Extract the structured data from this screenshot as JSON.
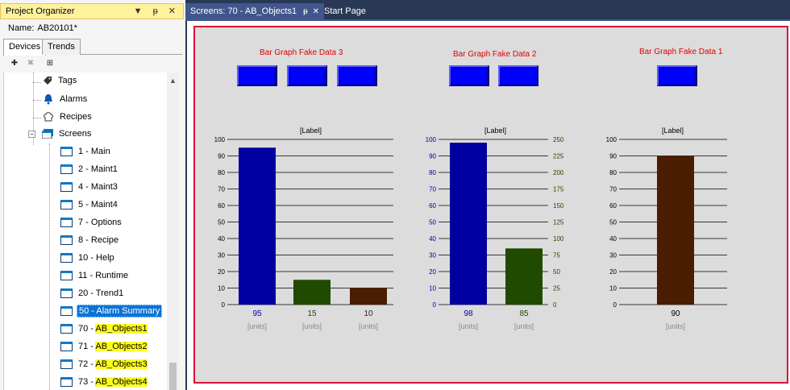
{
  "organizer": {
    "title": "Project Organizer",
    "title_buttons": "▼ ᵽ ✕",
    "name_label": "Name:",
    "name_value": "AB20101*",
    "tabs": [
      "Devices",
      "Trends"
    ],
    "tree": {
      "tags": "Tags",
      "alarms": "Alarms",
      "recipes": "Recipes",
      "screens": "Screens",
      "screen_items": [
        {
          "label": "1 - Main"
        },
        {
          "label": "2 - Maint1"
        },
        {
          "label": "4 - Maint3"
        },
        {
          "label": "5 - Maint4"
        },
        {
          "label": "7 - Options"
        },
        {
          "label": "8 - Recipe"
        },
        {
          "label": "10 - Help"
        },
        {
          "label": "11 - Runtime"
        },
        {
          "label": "20 - Trend1"
        },
        {
          "label": "50 - Alarm Summary"
        }
      ],
      "highlighted_items": [
        {
          "num": "70 - ",
          "name": "AB_Objects1"
        },
        {
          "num": "71 - ",
          "name": "AB_Objects2"
        },
        {
          "num": "72 - ",
          "name": "AB_Objects3"
        },
        {
          "num": "73 - ",
          "name": "AB_Objects4"
        }
      ]
    }
  },
  "doc_tabs": {
    "active": "Screens: 70 - AB_Objects1",
    "pin": "ᵽ",
    "close": "✕",
    "other": "Start Page"
  },
  "colors": {
    "selection": "#0a74d6",
    "highlight": "#ffff20",
    "screen_border": "#d6123c",
    "button_blue": "#0000ff",
    "bar_blue": "#0000a0",
    "bar_green": "#1f4a00",
    "bar_brown": "#4a1c00"
  },
  "chart_data": [
    {
      "type": "bar",
      "title": "Bar Graph Fake Data 3",
      "label": "[Label]",
      "ylim": [
        0,
        100
      ],
      "yticks": [
        "100",
        "90",
        "80",
        "70",
        "60",
        "50",
        "40",
        "30",
        "20",
        "10",
        "0"
      ],
      "bars": [
        {
          "value": 95,
          "label": "95",
          "units": "[units]",
          "color": "#0000a0",
          "text_color": "#0000a0"
        },
        {
          "value": 15,
          "label": "15",
          "units": "[units]",
          "color": "#1f4a00",
          "text_color": "#1f4a00"
        },
        {
          "value": 10,
          "label": "10",
          "units": "[units]",
          "color": "#4a1c00",
          "text_color": "#4a1c00"
        }
      ],
      "buttons": 3
    },
    {
      "type": "bar",
      "title": "Bar Graph Fake Data 2",
      "label": "[Label]",
      "ylim": [
        0,
        100
      ],
      "yticks": [
        "100",
        "90",
        "80",
        "70",
        "60",
        "50",
        "40",
        "30",
        "20",
        "10",
        "0"
      ],
      "y2lim": [
        0,
        250
      ],
      "y2ticks": [
        "250",
        "225",
        "200",
        "175",
        "150",
        "125",
        "100",
        "75",
        "50",
        "25",
        "0"
      ],
      "bars": [
        {
          "value": 98,
          "label": "98",
          "units": "[units]",
          "color": "#0000a0",
          "text_color": "#0000a0",
          "axis": "left"
        },
        {
          "value": 85,
          "label": "85",
          "units": "[units]",
          "color": "#1f4a00",
          "text_color": "#1f4a00",
          "axis": "right"
        }
      ],
      "buttons": 2
    },
    {
      "type": "bar",
      "title": "Bar Graph Fake Data 1",
      "label": "[Label]",
      "ylim": [
        0,
        100
      ],
      "yticks": [
        "100",
        "90",
        "80",
        "70",
        "60",
        "50",
        "40",
        "30",
        "20",
        "10",
        "0"
      ],
      "bars": [
        {
          "value": 90,
          "label": "90",
          "units": "[units]",
          "color": "#4a1c00",
          "text_color": "#000000"
        }
      ],
      "buttons": 1
    }
  ]
}
